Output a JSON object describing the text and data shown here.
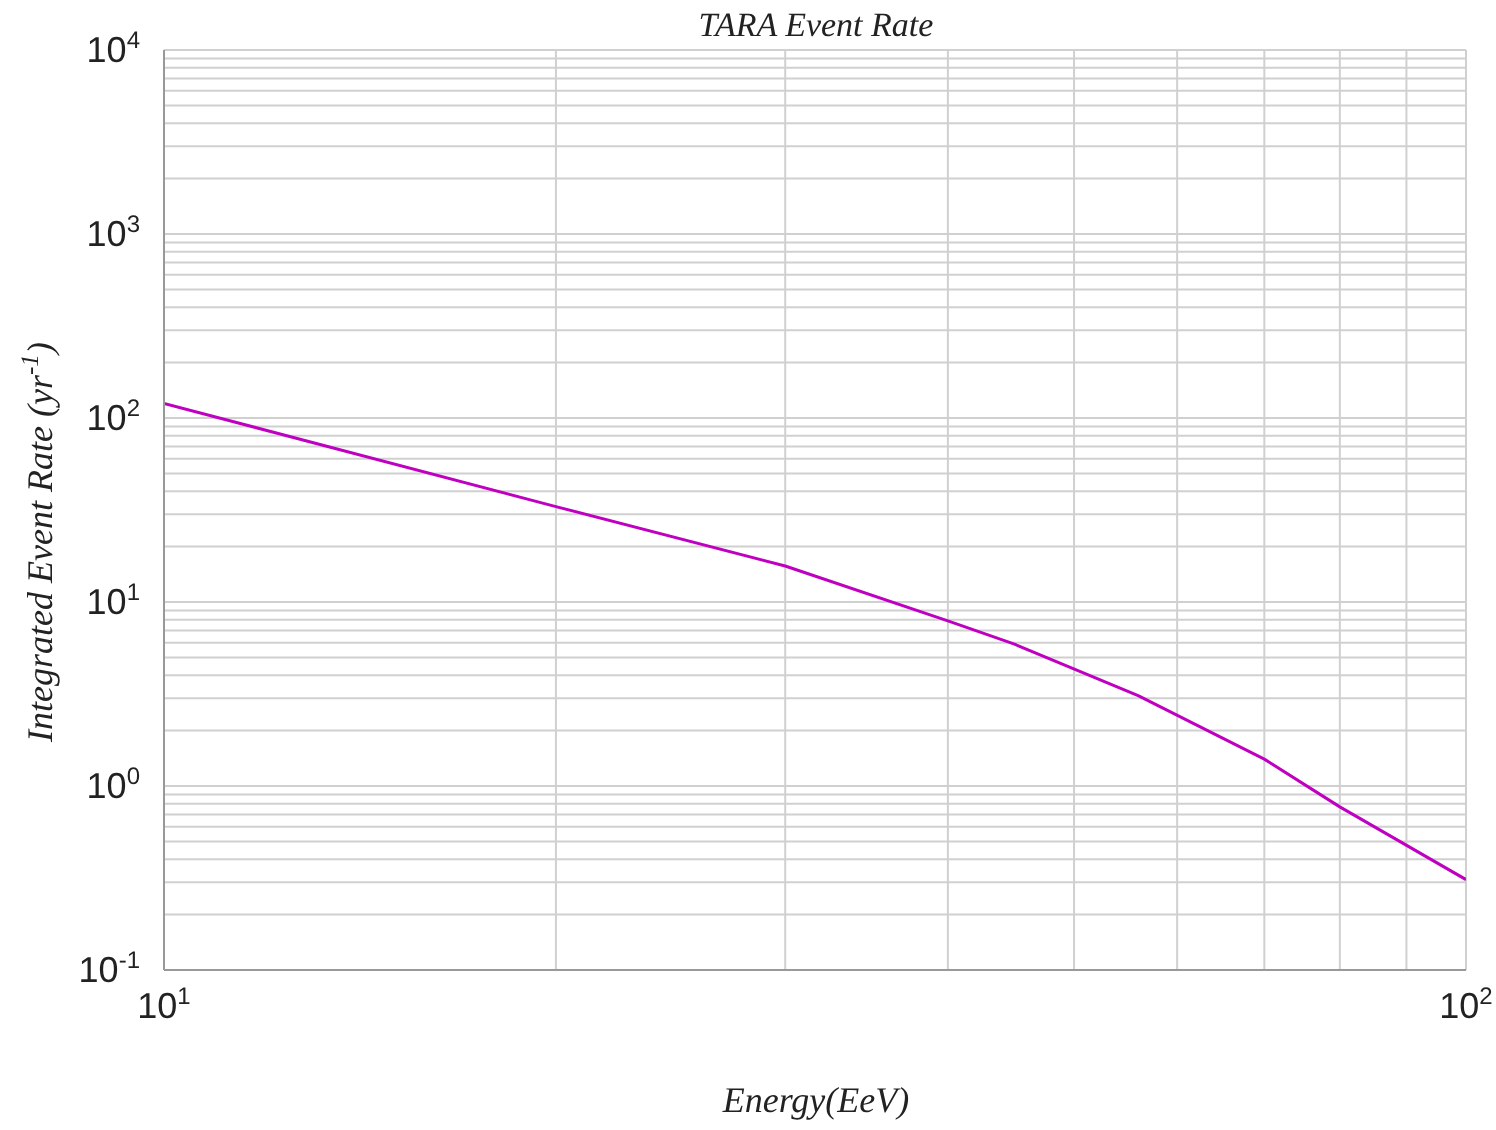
{
  "chart_data": {
    "type": "line",
    "title": "TARA  Event  Rate",
    "xlabel": "Energy(EeV)",
    "ylabel": "Integrated  Event  Rate  (yr$^{-1}$)",
    "log": "xy",
    "grid": true,
    "marker": "none",
    "line_style": "solid",
    "xlim": [
      10,
      100
    ],
    "ylim": [
      0.1,
      10000
    ],
    "xticks": [
      {
        "value": 10,
        "label": "10$^{1}$"
      },
      {
        "value": 20,
        "label": null
      },
      {
        "value": 30,
        "label": null
      },
      {
        "value": 40,
        "label": null
      },
      {
        "value": 50,
        "label": null
      },
      {
        "value": 60,
        "label": null
      },
      {
        "value": 70,
        "label": null
      },
      {
        "value": 80,
        "label": null
      },
      {
        "value": 90,
        "label": null
      },
      {
        "value": 100,
        "label": "10$^{2}$"
      }
    ],
    "yticks": [
      {
        "value": 0.1,
        "label": "10$^{-1}$"
      },
      {
        "value": 0.2,
        "label": null
      },
      {
        "value": 0.3,
        "label": null
      },
      {
        "value": 0.4,
        "label": null
      },
      {
        "value": 0.5,
        "label": null
      },
      {
        "value": 0.6,
        "label": null
      },
      {
        "value": 0.7,
        "label": null
      },
      {
        "value": 0.8,
        "label": null
      },
      {
        "value": 0.9,
        "label": null
      },
      {
        "value": 1,
        "label": "10$^{0}$"
      },
      {
        "value": 2,
        "label": null
      },
      {
        "value": 3,
        "label": null
      },
      {
        "value": 4,
        "label": null
      },
      {
        "value": 5,
        "label": null
      },
      {
        "value": 6,
        "label": null
      },
      {
        "value": 7,
        "label": null
      },
      {
        "value": 8,
        "label": null
      },
      {
        "value": 9,
        "label": null
      },
      {
        "value": 10,
        "label": "10$^{1}$"
      },
      {
        "value": 20,
        "label": null
      },
      {
        "value": 30,
        "label": null
      },
      {
        "value": 40,
        "label": null
      },
      {
        "value": 50,
        "label": null
      },
      {
        "value": 60,
        "label": null
      },
      {
        "value": 70,
        "label": null
      },
      {
        "value": 80,
        "label": null
      },
      {
        "value": 90,
        "label": null
      },
      {
        "value": 100,
        "label": "10$^{2}$"
      },
      {
        "value": 200,
        "label": null
      },
      {
        "value": 300,
        "label": null
      },
      {
        "value": 400,
        "label": null
      },
      {
        "value": 500,
        "label": null
      },
      {
        "value": 600,
        "label": null
      },
      {
        "value": 700,
        "label": null
      },
      {
        "value": 800,
        "label": null
      },
      {
        "value": 900,
        "label": null
      },
      {
        "value": 1000,
        "label": "10$^{3}$"
      },
      {
        "value": 2000,
        "label": null
      },
      {
        "value": 3000,
        "label": null
      },
      {
        "value": 4000,
        "label": null
      },
      {
        "value": 5000,
        "label": null
      },
      {
        "value": 6000,
        "label": null
      },
      {
        "value": 7000,
        "label": null
      },
      {
        "value": 8000,
        "label": null
      },
      {
        "value": 9000,
        "label": null
      },
      {
        "value": 10000,
        "label": "10$^{4}$"
      }
    ],
    "series": [
      {
        "color": "#c000c0",
        "x": [
          10,
          20,
          30,
          40,
          45,
          56,
          70,
          80,
          100
        ],
        "values": [
          120,
          33,
          15.7,
          7.9,
          5.9,
          3.1,
          1.4,
          0.77,
          0.31
        ]
      }
    ]
  }
}
